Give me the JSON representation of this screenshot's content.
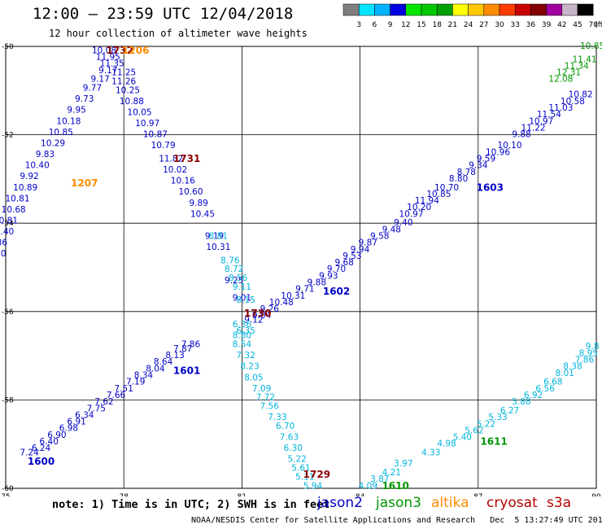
{
  "header": {
    "title": "12:00 – 23:59 UTC 12/04/2018",
    "subtitle": "12 hour collection of altimeter wave heights"
  },
  "scale": {
    "ticks": [
      "3",
      "6",
      "9",
      "12",
      "15",
      "18",
      "21",
      "24",
      "27",
      "30",
      "33",
      "36",
      "39",
      "42",
      "45",
      "70"
    ],
    "unit": "(ft)",
    "colors": [
      "#7f7f7f",
      "#00e5ff",
      "#00b2ff",
      "#0000e0",
      "#00e600",
      "#00c800",
      "#00a000",
      "#ffff00",
      "#ffc800",
      "#ff8c00",
      "#ff3c00",
      "#c80000",
      "#820000",
      "#a000a0",
      "#c8b4c8",
      "#000000"
    ]
  },
  "chart_data": {
    "type": "scatter",
    "xlim": [
      75,
      90
    ],
    "ylim": [
      -60,
      -50
    ],
    "x_ticks": [
      "75",
      "78",
      "81",
      "84",
      "87",
      "90"
    ],
    "y_ticks": [
      "-50",
      "-52",
      "-54",
      "-56",
      "-58",
      "-60"
    ],
    "series": [
      {
        "name": "jason2",
        "color": "#0000c8",
        "points": [
          [
            75.6,
            -59.2,
            "7.24"
          ],
          [
            75.9,
            -59.1,
            "6.24"
          ],
          [
            76.1,
            -58.95,
            "6.40"
          ],
          [
            76.3,
            -58.8,
            "6.90"
          ],
          [
            76.6,
            -58.65,
            "6.98"
          ],
          [
            76.8,
            -58.5,
            "6.91"
          ],
          [
            77.0,
            -58.35,
            "6.34"
          ],
          [
            77.3,
            -58.2,
            "7.75"
          ],
          [
            77.5,
            -58.05,
            "7.62"
          ],
          [
            77.8,
            -57.9,
            "7.66"
          ],
          [
            78.0,
            -57.75,
            "7.51"
          ],
          [
            78.3,
            -57.6,
            "7.19"
          ],
          [
            78.5,
            -57.45,
            "8.34"
          ],
          [
            78.8,
            -57.3,
            "8.04"
          ],
          [
            79.0,
            -57.15,
            "8.64"
          ],
          [
            79.3,
            -57.0,
            "8.13"
          ],
          [
            79.5,
            -56.85,
            "7.87"
          ],
          [
            79.7,
            -56.75,
            "7.86"
          ],
          [
            81.3,
            -56.2,
            "9.12"
          ],
          [
            81.5,
            -56.1,
            "9.04"
          ],
          [
            81.7,
            -55.95,
            "9.26"
          ],
          [
            82.0,
            -55.8,
            "10.48"
          ],
          [
            82.3,
            -55.65,
            "10.31"
          ],
          [
            82.6,
            -55.5,
            "9.71"
          ],
          [
            82.9,
            -55.35,
            "9.88"
          ],
          [
            83.2,
            -55.2,
            "9.93"
          ],
          [
            83.4,
            -55.05,
            "9.70"
          ],
          [
            83.6,
            -54.9,
            "9.68"
          ],
          [
            83.8,
            -54.75,
            "9.53"
          ],
          [
            84.0,
            -54.6,
            "9.94"
          ],
          [
            84.2,
            -54.45,
            "9.87"
          ],
          [
            84.5,
            -54.3,
            "9.58"
          ],
          [
            84.8,
            -54.15,
            "9.48"
          ],
          [
            85.1,
            -54.0,
            "9.40"
          ],
          [
            85.3,
            -53.8,
            "10.97"
          ],
          [
            85.5,
            -53.65,
            "10.20"
          ],
          [
            85.7,
            -53.5,
            "11.94"
          ],
          [
            86.0,
            -53.35,
            "10.85"
          ],
          [
            86.2,
            -53.2,
            "10.70"
          ],
          [
            86.5,
            -53.0,
            "8.80"
          ],
          [
            86.7,
            -52.85,
            "8.78"
          ],
          [
            87.0,
            -52.7,
            "9.34"
          ],
          [
            87.2,
            -52.55,
            "9.59"
          ],
          [
            87.5,
            -52.4,
            "10.96"
          ],
          [
            87.8,
            -52.25,
            "10.10"
          ],
          [
            88.1,
            -52.0,
            "9.88"
          ],
          [
            88.4,
            -51.85,
            "11.22"
          ],
          [
            88.6,
            -51.7,
            "10.97"
          ],
          [
            88.8,
            -51.55,
            "11.54"
          ],
          [
            89.1,
            -51.4,
            "11.03"
          ],
          [
            89.4,
            -51.25,
            "10.58"
          ],
          [
            89.6,
            -51.1,
            "10.82"
          ],
          [
            77.5,
            -50.1,
            "10.08"
          ],
          [
            77.6,
            -50.25,
            "11.95"
          ],
          [
            77.7,
            -50.4,
            "11.35"
          ],
          [
            77.6,
            -50.55,
            "9.17"
          ],
          [
            77.4,
            -50.75,
            "9.17"
          ],
          [
            77.2,
            -50.95,
            "9.77"
          ],
          [
            77.0,
            -51.2,
            "9.73"
          ],
          [
            76.8,
            -51.45,
            "9.95"
          ],
          [
            76.6,
            -51.7,
            "10.18"
          ],
          [
            76.4,
            -51.95,
            "10.85"
          ],
          [
            76.2,
            -52.2,
            "10.29"
          ],
          [
            76.0,
            -52.45,
            "9.83"
          ],
          [
            75.8,
            -52.7,
            "10.40"
          ],
          [
            75.6,
            -52.95,
            "9.92"
          ],
          [
            75.5,
            -53.2,
            "10.89"
          ],
          [
            75.3,
            -53.45,
            "10.81"
          ],
          [
            75.2,
            -53.7,
            "10.68"
          ],
          [
            75.0,
            -53.95,
            "10.81"
          ],
          [
            74.9,
            -54.2,
            "10.40"
          ],
          [
            74.8,
            -54.45,
            "9.86"
          ],
          [
            74.7,
            -54.7,
            "10.30"
          ],
          [
            74.6,
            -54.95,
            "9.35"
          ],
          [
            74.5,
            -55.2,
            "9.66"
          ],
          [
            78.0,
            -50.6,
            "11.25"
          ],
          [
            78.0,
            -50.8,
            "11.26"
          ],
          [
            78.1,
            -51.0,
            "10.25"
          ],
          [
            78.2,
            -51.25,
            "10.88"
          ],
          [
            78.4,
            -51.5,
            "10.05"
          ],
          [
            78.6,
            -51.75,
            "10.97"
          ],
          [
            78.8,
            -52.0,
            "10.87"
          ],
          [
            79.0,
            -52.25,
            "10.79"
          ],
          [
            79.2,
            -52.55,
            "11.82"
          ],
          [
            79.3,
            -52.8,
            "10.02"
          ],
          [
            79.5,
            -53.05,
            "10.16"
          ],
          [
            79.7,
            -53.3,
            "10.60"
          ],
          [
            79.9,
            -53.55,
            "9.89"
          ],
          [
            80.0,
            -53.8,
            "10.45"
          ],
          [
            80.3,
            -54.3,
            "9.19"
          ],
          [
            80.4,
            -54.55,
            "10.31"
          ],
          [
            80.8,
            -55.3,
            "9.25"
          ],
          [
            81.0,
            -55.7,
            "9.01"
          ]
        ]
      },
      {
        "name": "jason3",
        "color": "#009600",
        "points": [
          [
            89.7,
            -50.3,
            "11.41"
          ],
          [
            89.5,
            -50.45,
            "11.34"
          ],
          [
            89.3,
            -50.6,
            "12.31"
          ],
          [
            89.1,
            -50.75,
            "12.08"
          ],
          [
            89.9,
            -50.0,
            "10.85"
          ]
        ]
      },
      {
        "name": "altika",
        "color": "#ff8c00",
        "points": []
      },
      {
        "name": "cryosat",
        "color": "#b40000",
        "points": []
      },
      {
        "name": "s3a",
        "color": "#b40000",
        "points": []
      },
      {
        "name": "cyan",
        "color": "#00b4dc",
        "points": [
          [
            80.4,
            -54.3,
            "8.81"
          ],
          [
            80.7,
            -54.85,
            "8.76"
          ],
          [
            80.8,
            -55.05,
            "8.72"
          ],
          [
            80.9,
            -55.25,
            "8.56"
          ],
          [
            81.0,
            -55.45,
            "9.11"
          ],
          [
            81.1,
            -55.75,
            "8.15"
          ],
          [
            81.0,
            -56.3,
            "6.36"
          ],
          [
            81.1,
            -56.45,
            "6.35"
          ],
          [
            81.0,
            -56.55,
            "8.80"
          ],
          [
            81.0,
            -56.75,
            "8.54"
          ],
          [
            81.1,
            -57.0,
            "7.32"
          ],
          [
            81.2,
            -57.25,
            "8.23"
          ],
          [
            81.3,
            -57.5,
            "8.05"
          ],
          [
            81.5,
            -57.75,
            "7.09"
          ],
          [
            81.6,
            -57.95,
            "7.72"
          ],
          [
            81.7,
            -58.15,
            "7.56"
          ],
          [
            81.9,
            -58.4,
            "7.33"
          ],
          [
            82.1,
            -58.6,
            "6.70"
          ],
          [
            82.2,
            -58.85,
            "7.63"
          ],
          [
            82.3,
            -59.1,
            "6.30"
          ],
          [
            82.4,
            -59.35,
            "5.22"
          ],
          [
            82.5,
            -59.55,
            "5.61"
          ],
          [
            82.6,
            -59.75,
            "5.11"
          ],
          [
            82.8,
            -59.95,
            "5.94"
          ],
          [
            84.2,
            -59.95,
            "4.09"
          ],
          [
            84.5,
            -59.8,
            "3.87"
          ],
          [
            84.8,
            -59.65,
            "4.21"
          ],
          [
            85.1,
            -59.45,
            "3.97"
          ],
          [
            85.8,
            -59.2,
            "4.33"
          ],
          [
            86.2,
            -59.0,
            "4.98"
          ],
          [
            86.6,
            -58.85,
            "5.40"
          ],
          [
            86.9,
            -58.7,
            "5.62"
          ],
          [
            87.2,
            -58.55,
            "5.22"
          ],
          [
            87.5,
            -58.4,
            "5.33"
          ],
          [
            87.8,
            -58.25,
            "6.27"
          ],
          [
            88.1,
            -58.05,
            "5.88"
          ],
          [
            88.4,
            -57.9,
            "6.92"
          ],
          [
            88.7,
            -57.75,
            "6.56"
          ],
          [
            88.9,
            -57.6,
            "6.68"
          ],
          [
            89.2,
            -57.4,
            "8.01"
          ],
          [
            89.4,
            -57.25,
            "8.38"
          ],
          [
            89.7,
            -57.1,
            "7.86"
          ],
          [
            89.8,
            -56.95,
            "8.95"
          ],
          [
            89.9,
            -56.8,
            "9.8"
          ]
        ]
      }
    ],
    "time_labels": [
      {
        "x": 75.9,
        "y": -59.4,
        "text": "1600",
        "color": "#0000c8"
      },
      {
        "x": 79.6,
        "y": -57.35,
        "text": "1601",
        "color": "#0000c8"
      },
      {
        "x": 83.4,
        "y": -55.55,
        "text": "1602",
        "color": "#0000c8"
      },
      {
        "x": 87.3,
        "y": -53.2,
        "text": "1603",
        "color": "#0000c8"
      },
      {
        "x": 81.4,
        "y": -56.05,
        "text": "1730",
        "color": "#8b0000"
      },
      {
        "x": 79.6,
        "y": -52.55,
        "text": "1731",
        "color": "#8b0000"
      },
      {
        "x": 77.9,
        "y": -50.1,
        "text": "1732",
        "color": "#8b0000"
      },
      {
        "x": 82.9,
        "y": -59.7,
        "text": "1729",
        "color": "#8b0000"
      },
      {
        "x": 78.3,
        "y": -50.1,
        "text": "1206",
        "color": "#ff8c00"
      },
      {
        "x": 77.0,
        "y": -53.1,
        "text": "1207",
        "color": "#ff8c00"
      },
      {
        "x": 87.4,
        "y": -58.95,
        "text": "1611",
        "color": "#009600"
      },
      {
        "x": 84.9,
        "y": -59.95,
        "text": "1610",
        "color": "#009600"
      }
    ]
  },
  "footer": {
    "note": "note: 1) Time is in UTC; 2) SWH is in feet",
    "legend": [
      {
        "label": "jason2",
        "color": "#0000c8"
      },
      {
        "label": "jason3",
        "color": "#009600"
      },
      {
        "label": "altika",
        "color": "#ff8c00"
      },
      {
        "label": "cryosat",
        "color": "#b40000"
      },
      {
        "label": "s3a",
        "color": "#b40000"
      }
    ],
    "credit": "NOAA/NESDIS Center for Satellite Applications and Research   Dec  5 13:27:49 UTC 2018"
  }
}
